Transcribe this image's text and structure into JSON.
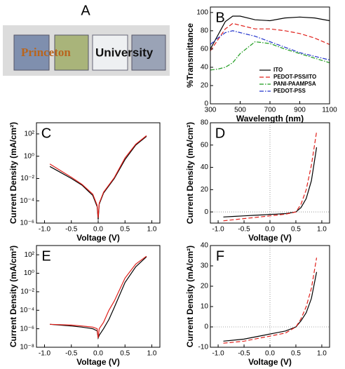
{
  "panel_a": {
    "label": "A",
    "words": [
      "Princeton",
      "University"
    ]
  },
  "chart_data": [
    {
      "type": "line",
      "panel": "B",
      "xlabel": "Wavelength (nm)",
      "ylabel": "%Transmittance",
      "x": [
        300,
        350,
        400,
        450,
        500,
        600,
        700,
        800,
        900,
        1000,
        1100
      ],
      "xlim": [
        300,
        1100
      ],
      "xticks": [
        300,
        500,
        700,
        900,
        1100
      ],
      "ylim": [
        0,
        106
      ],
      "yticks": [
        0,
        20,
        40,
        60,
        80,
        100
      ],
      "legend": "lower-right",
      "series": [
        {
          "name": "ITO",
          "color": "#000000",
          "dash": "solid",
          "values": [
            60,
            75,
            90,
            96,
            96,
            92,
            91,
            94,
            95,
            94,
            91
          ]
        },
        {
          "name": "PEDOT-PSS/ITO",
          "color": "#e0201b",
          "dash": "dashed",
          "values": [
            58,
            70,
            82,
            88,
            86,
            82,
            82,
            80,
            77,
            72,
            65
          ]
        },
        {
          "name": "PANI-PAAMPSA",
          "color": "#1a9a1a",
          "dash": "dashdot",
          "values": [
            37,
            38,
            40,
            45,
            55,
            68,
            66,
            60,
            55,
            50,
            45
          ]
        },
        {
          "name": "PEDOT-PSS",
          "color": "#2233cc",
          "dash": "dashdot",
          "values": [
            65,
            72,
            78,
            80,
            78,
            74,
            68,
            62,
            56,
            52,
            48
          ]
        }
      ]
    },
    {
      "type": "line",
      "panel": "C",
      "xlabel": "Voltage (V)",
      "ylabel": "Current Density (mA/cm²)",
      "scale": "log",
      "x": [
        -0.9,
        -0.7,
        -0.5,
        -0.3,
        -0.1,
        -0.02,
        0,
        0.02,
        0.1,
        0.3,
        0.5,
        0.7,
        0.9
      ],
      "xlim": [
        -1.15,
        1.15
      ],
      "xticks": [
        {
          "value": -1,
          "label": "-1.0"
        },
        -0.5,
        {
          "value": 0,
          "label": "0.0"
        },
        0.5,
        {
          "value": 1,
          "label": "1.0"
        }
      ],
      "ylim": [
        1e-06,
        1000
      ],
      "yticks": [
        {
          "value": 1e-06,
          "label": "10⁻⁶"
        },
        {
          "value": 0.0001,
          "label": "10⁻⁴"
        },
        {
          "value": 0.01,
          "label": "10⁻²"
        },
        {
          "value": 1,
          "label": "10⁰"
        },
        {
          "value": 100,
          "label": "10²"
        }
      ],
      "series": [
        {
          "color": "#000000",
          "dash": "solid",
          "values": [
            0.12,
            0.035,
            0.01,
            0.0025,
            0.0003,
            3e-05,
            2e-06,
            5e-05,
            0.0005,
            0.01,
            0.5,
            10,
            60
          ]
        },
        {
          "color": "#e0201b",
          "dash": "solid",
          "values": [
            0.2,
            0.05,
            0.013,
            0.003,
            0.0004,
            4e-05,
            3e-06,
            6e-05,
            0.0006,
            0.012,
            0.7,
            12,
            70
          ]
        }
      ]
    },
    {
      "type": "line",
      "panel": "D",
      "xlabel": "Voltage (V)",
      "ylabel": "Current Density (mA/cm²)",
      "crosshair": true,
      "x": [
        -0.9,
        -0.7,
        -0.5,
        -0.3,
        -0.1,
        0,
        0.1,
        0.3,
        0.5,
        0.6,
        0.7,
        0.8,
        0.9
      ],
      "xlim": [
        -1.15,
        1.15
      ],
      "xticks": [
        {
          "value": -1,
          "label": "-1.0"
        },
        -0.5,
        {
          "value": 0,
          "label": "0.0"
        },
        0.5,
        {
          "value": 1,
          "label": "1.0"
        }
      ],
      "ylim": [
        -10,
        80
      ],
      "yticks": [
        0,
        20,
        40,
        60,
        80
      ],
      "series": [
        {
          "color": "#000000",
          "dash": "solid",
          "values": [
            -4.5,
            -4,
            -3.5,
            -3,
            -2.5,
            -2.2,
            -2,
            -1.5,
            0,
            4,
            12,
            28,
            58
          ]
        },
        {
          "color": "#e0201b",
          "dash": "dashed",
          "values": [
            -8,
            -7,
            -6,
            -5,
            -4,
            -3.5,
            -3,
            -2,
            0,
            7,
            20,
            42,
            72
          ]
        }
      ]
    },
    {
      "type": "line",
      "panel": "E",
      "xlabel": "Voltage (V)",
      "ylabel": "Current Density (mA/cm²)",
      "scale": "log",
      "x": [
        -0.9,
        -0.5,
        -0.3,
        -0.1,
        -0.02,
        0,
        0.02,
        0.1,
        0.2,
        0.3,
        0.5,
        0.7,
        0.9
      ],
      "xlim": [
        -1.15,
        1.15
      ],
      "xticks": [
        {
          "value": -1,
          "label": "-1.0"
        },
        -0.5,
        {
          "value": 0,
          "label": "0.0"
        },
        0.5,
        {
          "value": 1,
          "label": "1.0"
        }
      ],
      "ylim": [
        1e-08,
        1000
      ],
      "yticks": [
        {
          "value": 1e-08,
          "label": "10⁻⁸"
        },
        {
          "value": 1e-06,
          "label": "10⁻⁶"
        },
        {
          "value": 0.0001,
          "label": "10⁻⁴"
        },
        {
          "value": 0.01,
          "label": "10⁻²"
        },
        {
          "value": 1,
          "label": "10⁰"
        },
        {
          "value": 100,
          "label": "10²"
        }
      ],
      "series": [
        {
          "color": "#000000",
          "dash": "solid",
          "values": [
            3e-06,
            2e-06,
            1.5e-06,
            1e-06,
            6e-07,
            1e-07,
            2e-07,
            1e-06,
            1e-05,
            0.0002,
            0.1,
            5,
            60
          ]
        },
        {
          "color": "#e0201b",
          "dash": "solid",
          "values": [
            3e-06,
            2.5e-06,
            2e-06,
            1.5e-06,
            1e-06,
            1e-07,
            1e-06,
            5e-06,
            0.0001,
            0.001,
            0.3,
            10,
            70
          ]
        }
      ]
    },
    {
      "type": "line",
      "panel": "F",
      "xlabel": "Voltage (V)",
      "ylabel": "Current Density (mA/cm²)",
      "crosshair": true,
      "x": [
        -0.9,
        -0.7,
        -0.5,
        -0.3,
        -0.1,
        0,
        0.1,
        0.3,
        0.5,
        0.6,
        0.7,
        0.8,
        0.9
      ],
      "xlim": [
        -1.15,
        1.15
      ],
      "xticks": [
        {
          "value": -1,
          "label": "-1.0"
        },
        -0.5,
        {
          "value": 0,
          "label": "0.0"
        },
        0.5,
        {
          "value": 1,
          "label": "1.0"
        }
      ],
      "ylim": [
        -10,
        40
      ],
      "yticks": [
        -10,
        0,
        10,
        20,
        30,
        40
      ],
      "series": [
        {
          "color": "#000000",
          "dash": "solid",
          "values": [
            -7,
            -6.5,
            -6,
            -5,
            -4,
            -3.5,
            -3,
            -2,
            0,
            3,
            7,
            14,
            27
          ]
        },
        {
          "color": "#e0201b",
          "dash": "dashed",
          "values": [
            -8,
            -7.5,
            -7,
            -6,
            -5,
            -4.5,
            -4,
            -3,
            0,
            4,
            10,
            19,
            34
          ]
        }
      ]
    }
  ]
}
